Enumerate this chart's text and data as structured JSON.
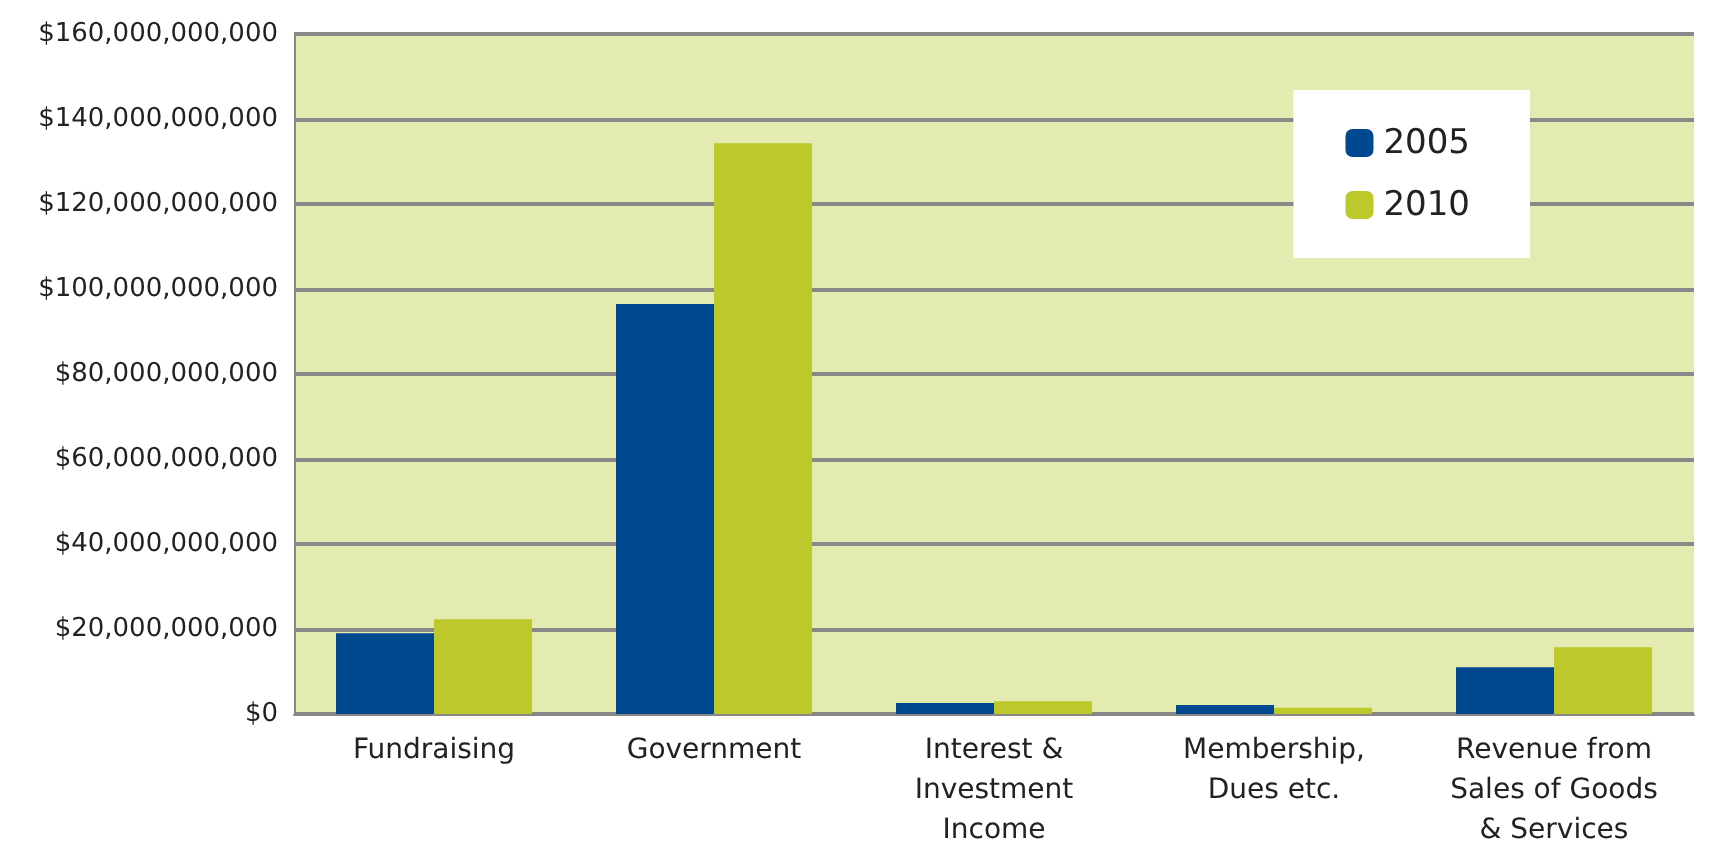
{
  "chart_data": {
    "type": "bar",
    "categories": [
      "Fundraising",
      "Government",
      "Interest &\nInvestment\nIncome",
      "Membership,\nDues etc.",
      "Revenue from\nSales of Goods\n& Services"
    ],
    "series": [
      {
        "name": "2005",
        "color": "#004990",
        "values": [
          19000000000,
          96500000000,
          2600000000,
          2100000000,
          11000000000
        ]
      },
      {
        "name": "2010",
        "color": "#bdc92a",
        "values": [
          22300000000,
          134300000000,
          3000000000,
          1500000000,
          15700000000
        ]
      }
    ],
    "ylim": [
      0,
      160000000000
    ],
    "yticks": [
      {
        "value": 0,
        "label": "$0"
      },
      {
        "value": 20000000000,
        "label": "$20,000,000,000"
      },
      {
        "value": 40000000000,
        "label": "$40,000,000,000"
      },
      {
        "value": 60000000000,
        "label": "$60,000,000,000"
      },
      {
        "value": 80000000000,
        "label": "$80,000,000,000"
      },
      {
        "value": 100000000000,
        "label": "$100,000,000,000"
      },
      {
        "value": 120000000000,
        "label": "$120,000,000,000"
      },
      {
        "value": 140000000000,
        "label": "$140,000,000,000"
      },
      {
        "value": 160000000000,
        "label": "$160,000,000,000"
      }
    ],
    "grid": "y",
    "legend": "top right"
  }
}
